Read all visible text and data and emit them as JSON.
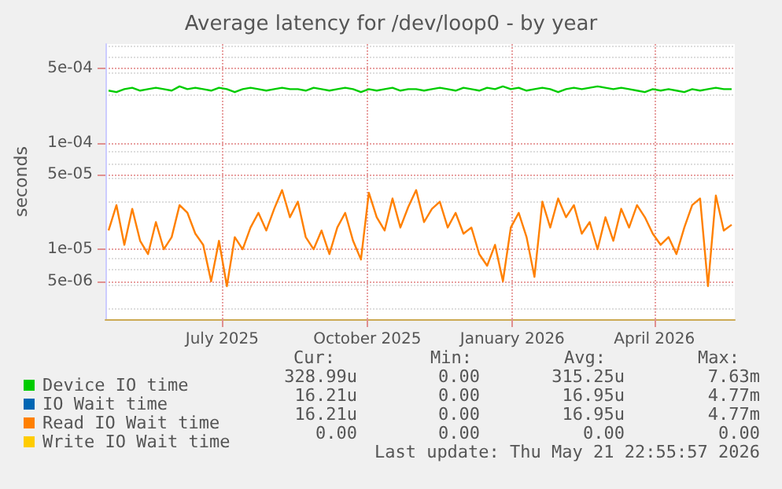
{
  "chart_data": {
    "type": "line",
    "title": "Average latency for /dev/loop0 - by year",
    "ylabel": "seconds",
    "log": "y",
    "grid": true,
    "legend": "bottom",
    "line_style": "solid",
    "marker": "none",
    "x": [
      "2025-04-20",
      "2025-04-25",
      "2025-04-30",
      "2025-05-05",
      "2025-05-10",
      "2025-05-15",
      "2025-05-20",
      "2025-05-25",
      "2025-05-30",
      "2025-06-04",
      "2025-06-09",
      "2025-06-14",
      "2025-06-19",
      "2025-06-24",
      "2025-06-29",
      "2025-07-04",
      "2025-07-09",
      "2025-07-14",
      "2025-07-19",
      "2025-07-24",
      "2025-07-29",
      "2025-08-03",
      "2025-08-08",
      "2025-08-13",
      "2025-08-18",
      "2025-08-23",
      "2025-08-28",
      "2025-09-02",
      "2025-09-07",
      "2025-09-12",
      "2025-09-17",
      "2025-09-22",
      "2025-09-27",
      "2025-10-02",
      "2025-10-07",
      "2025-10-12",
      "2025-10-17",
      "2025-10-22",
      "2025-10-27",
      "2025-11-01",
      "2025-11-06",
      "2025-11-11",
      "2025-11-16",
      "2025-11-21",
      "2025-11-26",
      "2025-12-01",
      "2025-12-06",
      "2025-12-11",
      "2025-12-16",
      "2025-12-21",
      "2025-12-26",
      "2025-12-31",
      "2026-01-05",
      "2026-01-10",
      "2026-01-15",
      "2026-01-20",
      "2026-01-25",
      "2026-01-30",
      "2026-02-04",
      "2026-02-09",
      "2026-02-14",
      "2026-02-19",
      "2026-02-24",
      "2026-03-01",
      "2026-03-06",
      "2026-03-11",
      "2026-03-16",
      "2026-03-21",
      "2026-03-26",
      "2026-03-31",
      "2026-04-05",
      "2026-04-10",
      "2026-04-15",
      "2026-04-20",
      "2026-04-25",
      "2026-04-30",
      "2026-05-05",
      "2026-05-10",
      "2026-05-15",
      "2026-05-20"
    ],
    "xlim": [
      "2025-04-18",
      "2026-05-22"
    ],
    "xticks": [
      {
        "value": "2025-07-01",
        "label": "July 2025"
      },
      {
        "value": "2025-10-01",
        "label": "October 2025"
      },
      {
        "value": "2026-01-01",
        "label": "January 2026"
      },
      {
        "value": "2026-04-01",
        "label": "April 2026"
      }
    ],
    "ylim": [
      2.2e-06,
      0.00085
    ],
    "yticks": [
      {
        "value": 5e-06,
        "label": "5e-06"
      },
      {
        "value": 1e-05,
        "label": "1e-05"
      },
      {
        "value": 5e-05,
        "label": "5e-05"
      },
      {
        "value": 0.0001,
        "label": "1e-04"
      },
      {
        "value": 0.0005,
        "label": "5e-04"
      }
    ],
    "series": [
      {
        "name": "Device IO time",
        "color": "#00cc00",
        "values": [
          0.00031,
          0.0003,
          0.00032,
          0.00033,
          0.00031,
          0.00032,
          0.00033,
          0.00032,
          0.00031,
          0.00034,
          0.00032,
          0.00033,
          0.00032,
          0.00031,
          0.00033,
          0.00032,
          0.0003,
          0.00032,
          0.00033,
          0.00032,
          0.00031,
          0.00032,
          0.00033,
          0.00032,
          0.00032,
          0.00031,
          0.00033,
          0.00032,
          0.00031,
          0.00032,
          0.00033,
          0.00032,
          0.0003,
          0.00032,
          0.00031,
          0.00032,
          0.00033,
          0.00031,
          0.00032,
          0.00032,
          0.00031,
          0.00032,
          0.00033,
          0.00032,
          0.00031,
          0.00033,
          0.00032,
          0.00031,
          0.00033,
          0.00032,
          0.00034,
          0.00032,
          0.00033,
          0.00031,
          0.00032,
          0.00033,
          0.00032,
          0.0003,
          0.00032,
          0.00033,
          0.00032,
          0.00033,
          0.00034,
          0.00033,
          0.00032,
          0.00033,
          0.00032,
          0.00031,
          0.0003,
          0.00032,
          0.00031,
          0.00032,
          0.00031,
          0.0003,
          0.00032,
          0.00031,
          0.00032,
          0.00033,
          0.00032,
          0.00032
        ]
      },
      {
        "name": "IO Wait time",
        "color": "#0066b3",
        "values": [
          null,
          null,
          null,
          null,
          null,
          null,
          null,
          null,
          null,
          null,
          null,
          null,
          null,
          null,
          null,
          null,
          null,
          null,
          null,
          null,
          null,
          null,
          null,
          null,
          null,
          null,
          null,
          null,
          null,
          null,
          null,
          null,
          null,
          null,
          null,
          null,
          null,
          null,
          null,
          null,
          null,
          null,
          null,
          null,
          null,
          null,
          null,
          null,
          null,
          null,
          null,
          null,
          null,
          null,
          null,
          null,
          null,
          null,
          null,
          null,
          null,
          null,
          null,
          null,
          null,
          null,
          null,
          null,
          null,
          null,
          null,
          null,
          null,
          null,
          null,
          null,
          null,
          null,
          null,
          null
        ]
      },
      {
        "name": "Read IO Wait time",
        "color": "#ff8000",
        "values": [
          1.5e-05,
          2.6e-05,
          1.1e-05,
          2.4e-05,
          1.2e-05,
          9e-06,
          1.8e-05,
          1e-05,
          1.3e-05,
          2.6e-05,
          2.2e-05,
          1.4e-05,
          1.1e-05,
          5e-06,
          1.2e-05,
          4.5e-06,
          1.3e-05,
          1e-05,
          1.6e-05,
          2.2e-05,
          1.5e-05,
          2.4e-05,
          3.6e-05,
          2e-05,
          2.8e-05,
          1.3e-05,
          1e-05,
          1.5e-05,
          9e-06,
          1.6e-05,
          2.2e-05,
          1.2e-05,
          8e-06,
          3.4e-05,
          2e-05,
          1.5e-05,
          3e-05,
          1.6e-05,
          2.5e-05,
          3.6e-05,
          1.8e-05,
          2.4e-05,
          2.8e-05,
          1.6e-05,
          2.2e-05,
          1.4e-05,
          1.6e-05,
          9e-06,
          7e-06,
          1.1e-05,
          5e-06,
          1.6e-05,
          2.2e-05,
          1.3e-05,
          5.5e-06,
          2.8e-05,
          1.6e-05,
          3e-05,
          2e-05,
          2.6e-05,
          1.4e-05,
          1.8e-05,
          1e-05,
          2e-05,
          1.2e-05,
          2.4e-05,
          1.6e-05,
          2.6e-05,
          2e-05,
          1.4e-05,
          1.1e-05,
          1.3e-05,
          9e-06,
          1.6e-05,
          2.6e-05,
          3e-05,
          4.5e-06,
          3.2e-05,
          1.5e-05,
          1.7e-05
        ]
      },
      {
        "name": "Write IO Wait time",
        "color": "#ffcc00",
        "values": [
          null,
          null,
          null,
          null,
          null,
          null,
          null,
          null,
          null,
          null,
          null,
          null,
          null,
          null,
          null,
          null,
          null,
          null,
          null,
          null,
          null,
          null,
          null,
          null,
          null,
          null,
          null,
          null,
          null,
          null,
          null,
          null,
          null,
          null,
          null,
          null,
          null,
          null,
          null,
          null,
          null,
          null,
          null,
          null,
          null,
          null,
          null,
          null,
          null,
          null,
          null,
          null,
          null,
          null,
          null,
          null,
          null,
          null,
          null,
          null,
          null,
          null,
          null,
          null,
          null,
          null,
          null,
          null,
          null,
          null,
          null,
          null,
          null,
          null,
          null,
          null,
          null,
          null,
          null,
          null
        ]
      }
    ],
    "annotations": [
      "Cur:",
      "Min:",
      "Avg:",
      "Max:",
      "328.99u",
      "0.00",
      "315.25u",
      "7.63m",
      "16.21u",
      "0.00",
      "16.95u",
      "4.77m",
      "16.21u",
      "0.00",
      "16.95u",
      "4.77m",
      "0.00",
      "0.00",
      "0.00",
      "0.00",
      "Last update: Thu May 21 22:55:57 2026"
    ]
  }
}
